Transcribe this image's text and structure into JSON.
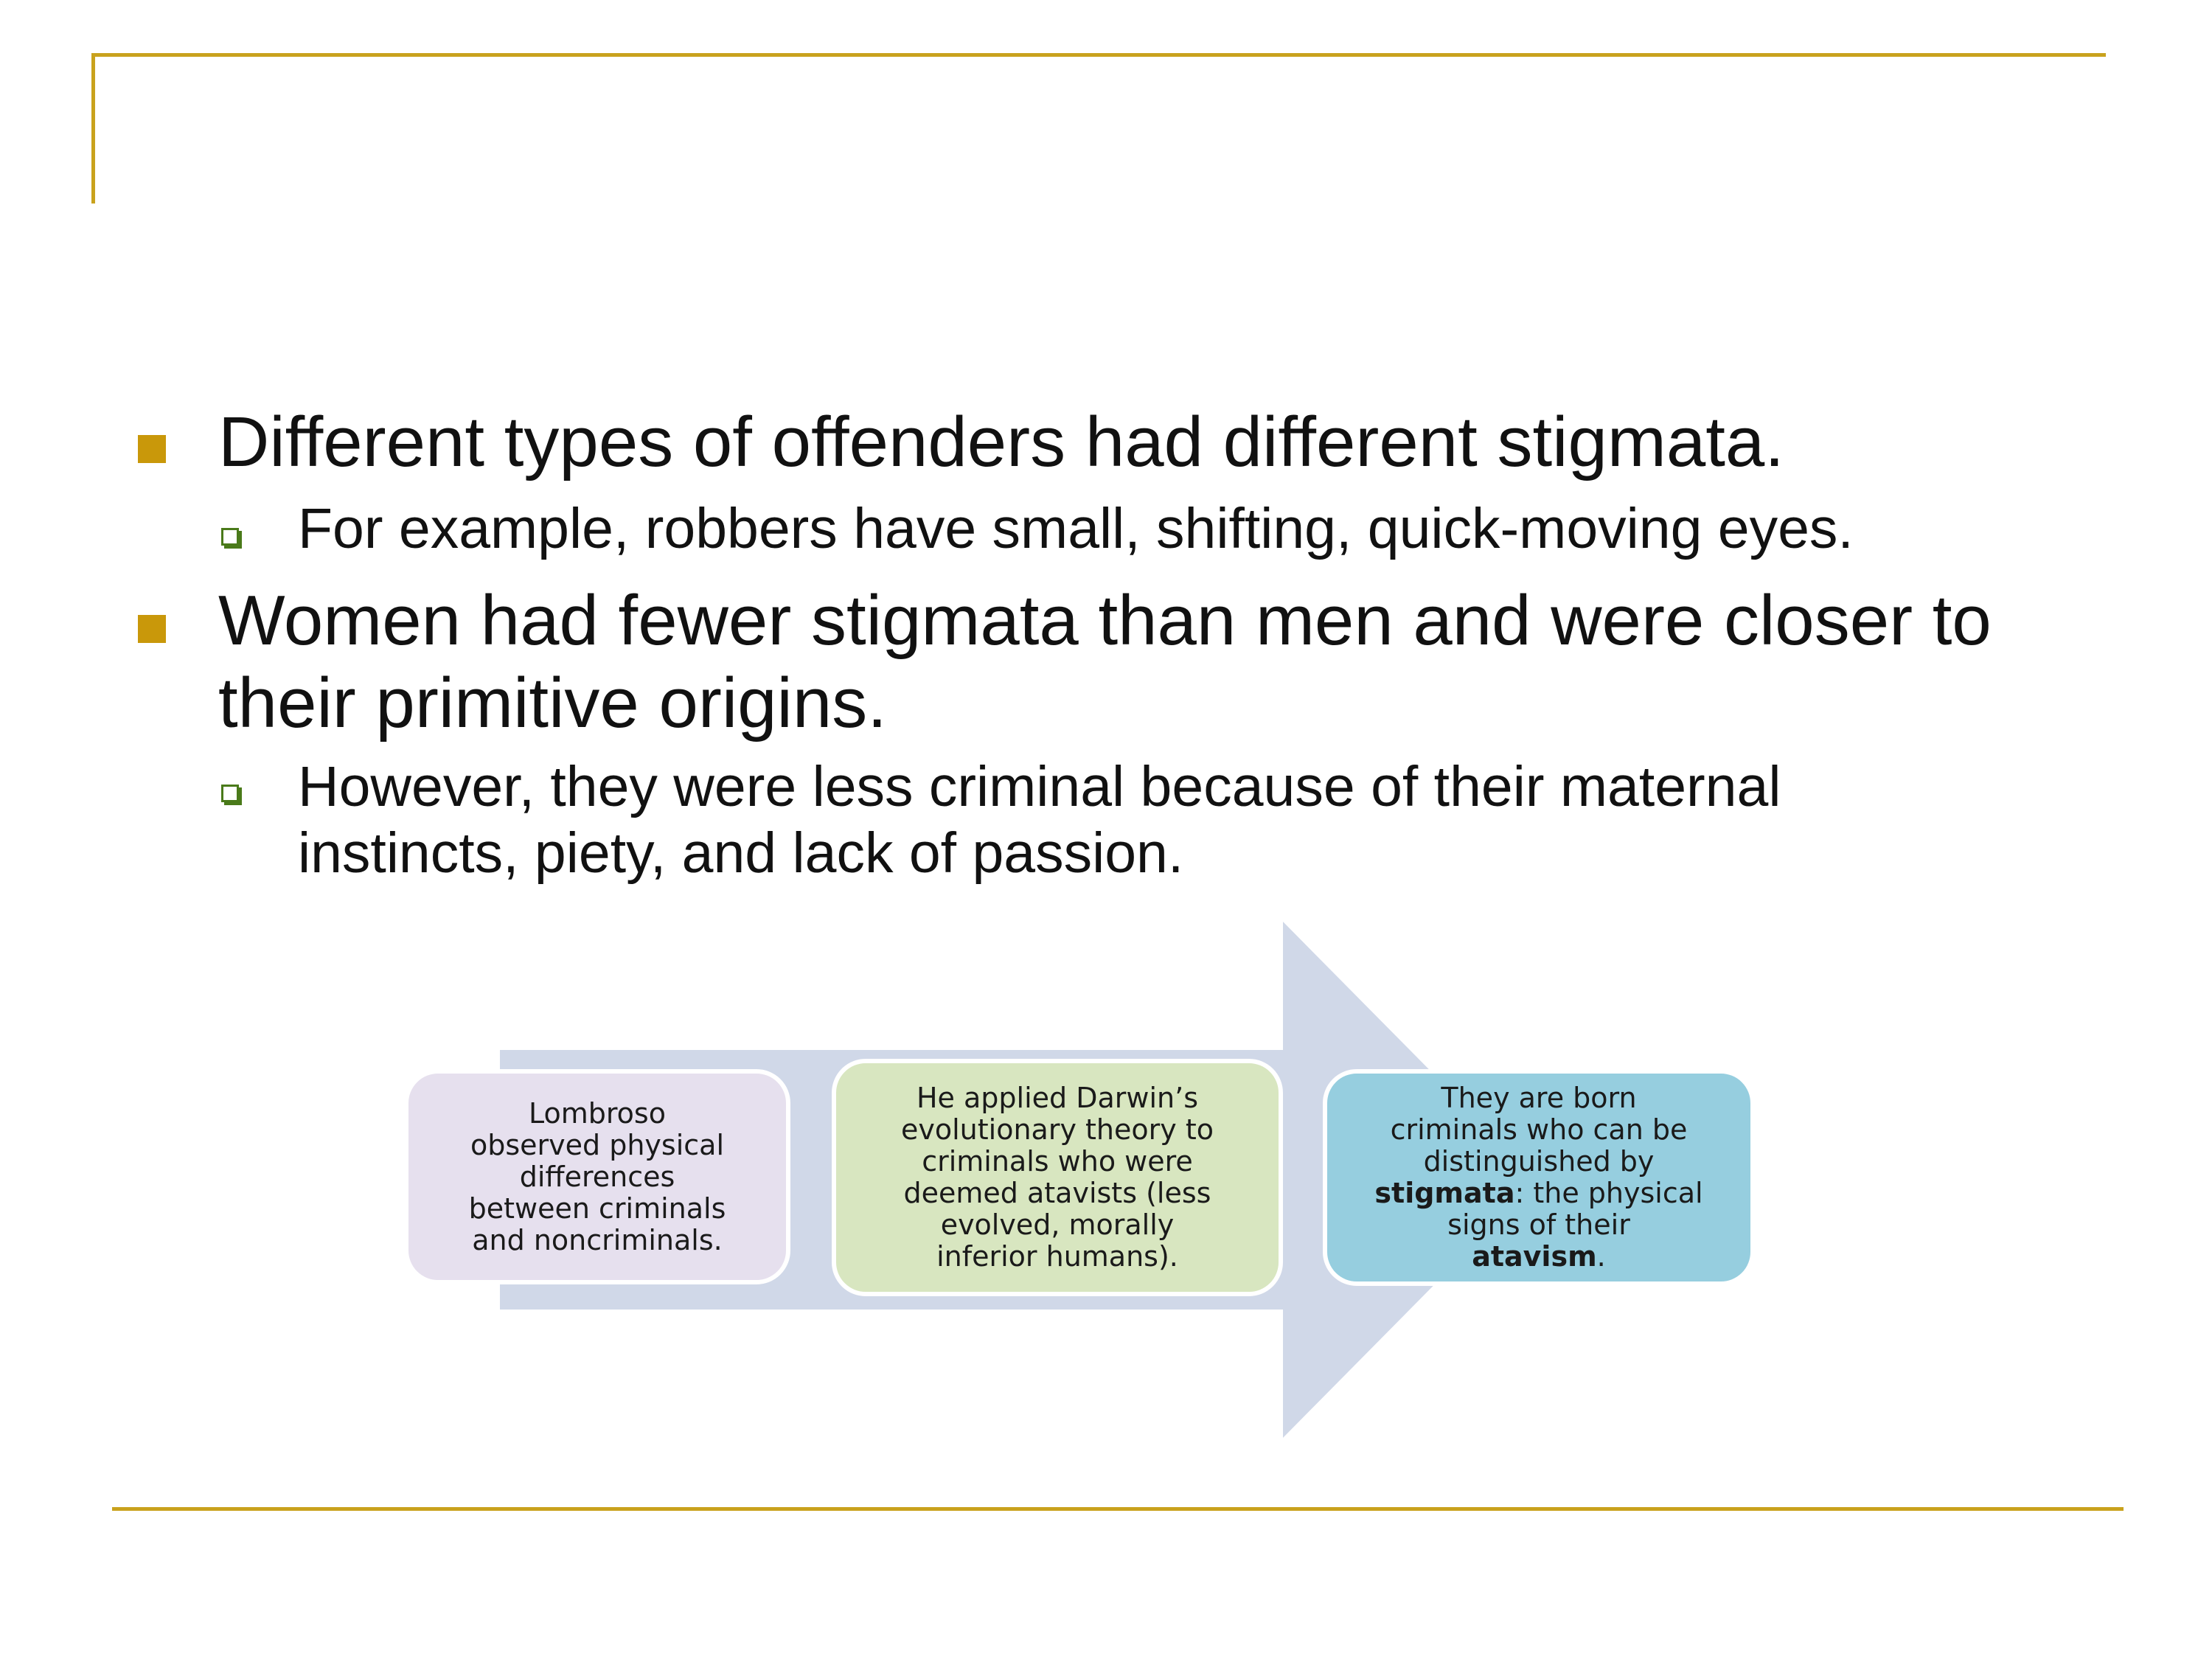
{
  "colors": {
    "accent_rule": "#C9A21D",
    "bullet_square": "#C9980A",
    "sub_bullet": "#4A7A1A",
    "arrow": "#D0D8E8",
    "box1": "#E6E0EE",
    "box2": "#D8E6C0",
    "box3": "#96CEDF"
  },
  "bullets": [
    {
      "text": "Different types of offenders had different stigmata.",
      "sub": [
        "For example, robbers have small, shifting, quick-moving eyes."
      ]
    },
    {
      "line1": "Women had fewer stigmata than men and were closer to",
      "line2": "their primitive origins.",
      "sub": [
        "However, they were less criminal because of their maternal",
        "instincts, piety, and lack of passion."
      ]
    }
  ],
  "diagram": {
    "box1": {
      "lines": [
        "Lombroso",
        "observed physical",
        "differences",
        "between criminals",
        "and noncriminals."
      ]
    },
    "box2": {
      "lines": [
        "He applied Darwin’s",
        "evolutionary theory to",
        "criminals who were",
        "deemed atavists (less",
        "evolved, morally",
        "inferior humans)."
      ]
    },
    "box3": {
      "l1": "They are born",
      "l2": "criminals who can be",
      "l3": "distinguished by",
      "l4_bold": "stigmata",
      "l4_rest": ": the physical",
      "l5": "signs of their",
      "l6_bold": "atavism",
      "l6_rest": "."
    }
  }
}
